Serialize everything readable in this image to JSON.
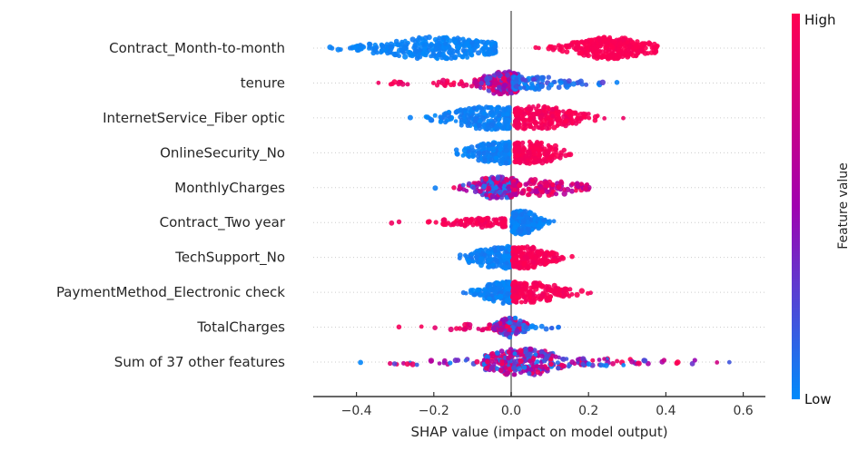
{
  "chart_data": {
    "type": "scatter",
    "variant": "shap-beeswarm-summary",
    "title": "",
    "xlabel": "SHAP value (impact on model output)",
    "ylabel": "",
    "xlim": [
      -0.51,
      0.66
    ],
    "zero_line": 0,
    "grid": "dotted-horizontal-per-row",
    "x_ticks": [
      {
        "v": -0.4,
        "label": "−0.4"
      },
      {
        "v": -0.2,
        "label": "−0.2"
      },
      {
        "v": 0.0,
        "label": "0.0"
      },
      {
        "v": 0.2,
        "label": "0.2"
      },
      {
        "v": 0.4,
        "label": "0.4"
      },
      {
        "v": 0.6,
        "label": "0.6"
      }
    ],
    "colorbar": {
      "label": "Feature value",
      "high": "High",
      "low": "Low",
      "top_color": "#ff0051",
      "mid_color": "#a001b0",
      "bottom_color": "#008bfb"
    },
    "colors": {
      "blue": "#008bfb",
      "purple": "#a001b0",
      "red": "#ff0051",
      "zero_line": "#909090",
      "grid": "#cccccc",
      "axis": "#333333",
      "text": "#262626"
    },
    "features": [
      {
        "name": "Contract_Month-to-month",
        "clusters": [
          {
            "mean": -0.19,
            "sd": 0.1,
            "min": -0.47,
            "max": -0.04,
            "n": 330,
            "t_min": 0.0,
            "t_max": 0.06,
            "half_h": 12
          },
          {
            "mean": 0.26,
            "sd": 0.065,
            "min": 0.04,
            "max": 0.38,
            "n": 300,
            "t_min": 0.95,
            "t_max": 1.0,
            "half_h": 12
          }
        ]
      },
      {
        "name": "tenure",
        "clusters": [
          {
            "mean": -0.1,
            "sd": 0.11,
            "min": -0.39,
            "max": -0.04,
            "n": 55,
            "t_min": 0.85,
            "t_max": 1.0,
            "half_h": 3.5
          },
          {
            "mean": -0.02,
            "sd": 0.035,
            "min": -0.1,
            "max": 0.02,
            "n": 170,
            "t_min": 0.15,
            "t_max": 1.0,
            "half_h": 13
          },
          {
            "mean": 0.03,
            "sd": 0.09,
            "min": 0.005,
            "max": 0.54,
            "n": 140,
            "t_min": 0.0,
            "t_max": 0.3,
            "half_h": 7
          }
        ]
      },
      {
        "name": "InternetService_Fiber optic",
        "clusters": [
          {
            "mean": -0.05,
            "sd": 0.07,
            "min": -0.28,
            "max": -0.005,
            "n": 250,
            "t_min": 0.0,
            "t_max": 0.08,
            "half_h": 13
          },
          {
            "mean": 0.07,
            "sd": 0.07,
            "min": 0.01,
            "max": 0.34,
            "n": 230,
            "t_min": 0.9,
            "t_max": 1.0,
            "half_h": 13
          }
        ]
      },
      {
        "name": "OnlineSecurity_No",
        "clusters": [
          {
            "mean": -0.03,
            "sd": 0.05,
            "min": -0.26,
            "max": -0.005,
            "n": 230,
            "t_min": 0.0,
            "t_max": 0.08,
            "half_h": 12
          },
          {
            "mean": 0.05,
            "sd": 0.055,
            "min": 0.01,
            "max": 0.29,
            "n": 200,
            "t_min": 0.92,
            "t_max": 1.0,
            "half_h": 12
          }
        ]
      },
      {
        "name": "MonthlyCharges",
        "clusters": [
          {
            "mean": -0.03,
            "sd": 0.045,
            "min": -0.2,
            "max": 0.005,
            "n": 190,
            "t_min": 0.0,
            "t_max": 1.0,
            "half_h": 12
          },
          {
            "mean": 0.05,
            "sd": 0.08,
            "min": 0.005,
            "max": 0.375,
            "n": 150,
            "t_min": 0.55,
            "t_max": 1.0,
            "half_h": 9
          }
        ]
      },
      {
        "name": "Contract_Two year",
        "clusters": [
          {
            "mean": -0.05,
            "sd": 0.09,
            "min": -0.42,
            "max": -0.015,
            "n": 110,
            "t_min": 0.9,
            "t_max": 1.0,
            "half_h": 5
          },
          {
            "mean": 0.025,
            "sd": 0.03,
            "min": 0.002,
            "max": 0.125,
            "n": 260,
            "t_min": 0.0,
            "t_max": 0.08,
            "half_h": 13
          }
        ]
      },
      {
        "name": "TechSupport_No",
        "clusters": [
          {
            "mean": -0.03,
            "sd": 0.05,
            "min": -0.27,
            "max": -0.003,
            "n": 210,
            "t_min": 0.0,
            "t_max": 0.08,
            "half_h": 12
          },
          {
            "mean": 0.035,
            "sd": 0.045,
            "min": 0.004,
            "max": 0.22,
            "n": 190,
            "t_min": 0.92,
            "t_max": 1.0,
            "half_h": 12
          }
        ]
      },
      {
        "name": "PaymentMethod_Electronic check",
        "clusters": [
          {
            "mean": -0.02,
            "sd": 0.035,
            "min": -0.16,
            "max": -0.002,
            "n": 200,
            "t_min": 0.0,
            "t_max": 0.08,
            "half_h": 12
          },
          {
            "mean": 0.045,
            "sd": 0.06,
            "min": 0.004,
            "max": 0.32,
            "n": 190,
            "t_min": 0.92,
            "t_max": 1.0,
            "half_h": 12
          }
        ]
      },
      {
        "name": "TotalCharges",
        "clusters": [
          {
            "mean": -0.07,
            "sd": 0.075,
            "min": -0.31,
            "max": -0.02,
            "n": 45,
            "t_min": 0.8,
            "t_max": 1.0,
            "half_h": 3.5
          },
          {
            "mean": 0.0,
            "sd": 0.022,
            "min": -0.05,
            "max": 0.045,
            "n": 130,
            "t_min": 0.0,
            "t_max": 1.0,
            "half_h": 11
          },
          {
            "mean": 0.06,
            "sd": 0.04,
            "min": 0.03,
            "max": 0.13,
            "n": 12,
            "t_min": 0.0,
            "t_max": 0.2,
            "half_h": 3
          }
        ]
      },
      {
        "name": "Sum of 37 other features",
        "clusters": [
          {
            "mean": -0.16,
            "sd": 0.12,
            "min": -0.42,
            "max": -0.06,
            "n": 32,
            "t_min": 0.0,
            "t_max": 1.0,
            "half_h": 3.5
          },
          {
            "mean": 0.03,
            "sd": 0.065,
            "min": -0.07,
            "max": 0.18,
            "n": 270,
            "t_min": 0.0,
            "t_max": 1.0,
            "half_h": 15
          },
          {
            "mean": 0.26,
            "sd": 0.13,
            "min": 0.18,
            "max": 0.62,
            "n": 48,
            "t_min": 0.0,
            "t_max": 1.0,
            "half_h": 4
          }
        ]
      }
    ]
  }
}
